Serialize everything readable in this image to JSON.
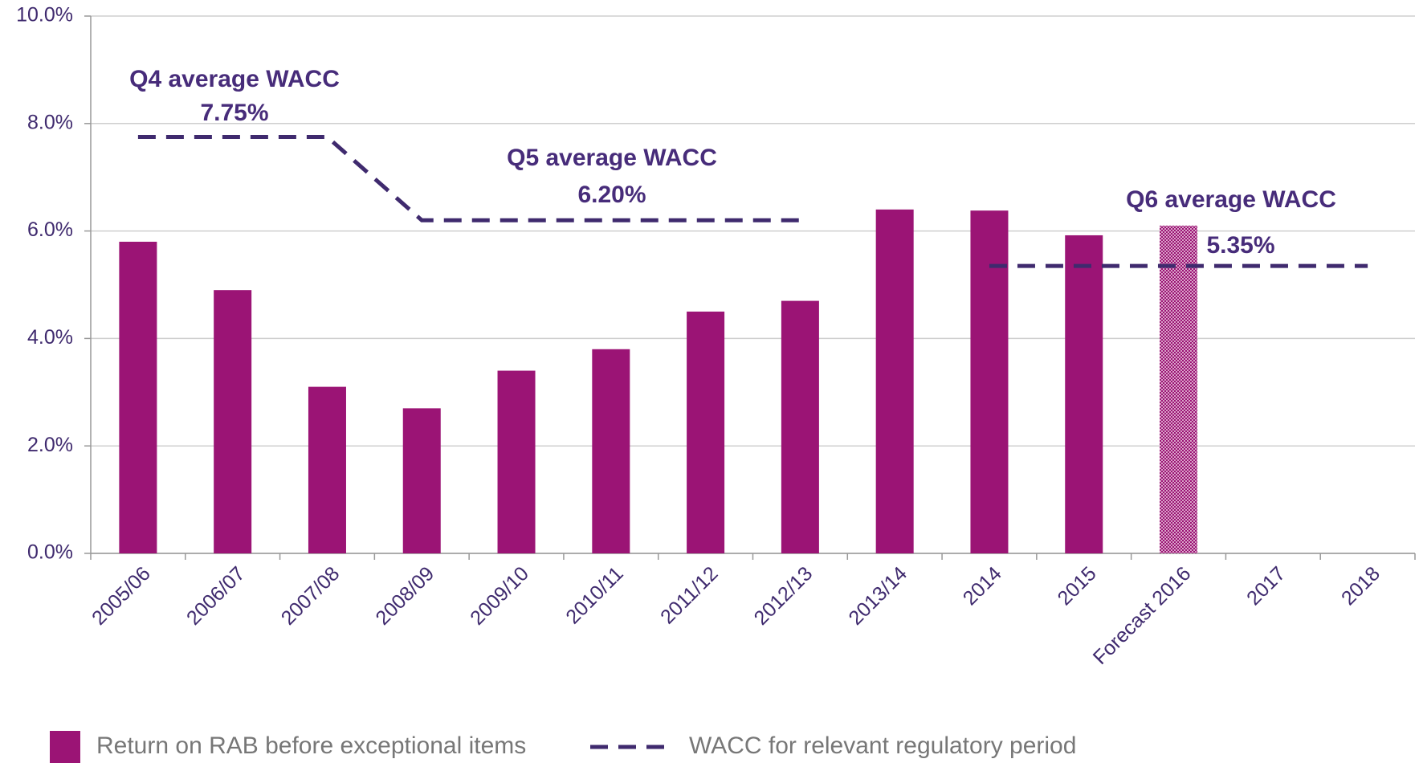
{
  "chart_data": {
    "type": "bar",
    "categories": [
      "2005/06",
      "2006/07",
      "2007/08",
      "2008/09",
      "2009/10",
      "2010/11",
      "2011/12",
      "2012/13",
      "2013/14",
      "2014",
      "2015",
      "Forecast 2016",
      "2017",
      "2018"
    ],
    "series": [
      {
        "name": "Return on RAB before exceptional items",
        "type": "bar",
        "color": "#9b1475",
        "values": [
          5.8,
          4.9,
          3.1,
          2.7,
          3.4,
          3.8,
          4.5,
          4.7,
          6.4,
          6.38,
          5.92,
          6.1,
          null,
          null
        ],
        "hatched": [
          false,
          false,
          false,
          false,
          false,
          false,
          false,
          false,
          false,
          false,
          false,
          true,
          false,
          false
        ]
      },
      {
        "name": "WACC for relevant regulatory period",
        "type": "line",
        "dashed": true,
        "color": "#3f2a6e",
        "values": [
          7.75,
          7.75,
          7.75,
          6.2,
          6.2,
          6.2,
          6.2,
          6.2,
          null,
          5.35,
          5.35,
          5.35,
          5.35,
          5.35
        ]
      }
    ],
    "ylim": [
      0,
      10
    ],
    "yticks": [
      {
        "value": 0,
        "label": "0.0%"
      },
      {
        "value": 2,
        "label": "2.0%"
      },
      {
        "value": 4,
        "label": "4.0%"
      },
      {
        "value": 6,
        "label": "6.0%"
      },
      {
        "value": 8,
        "label": "8.0%"
      },
      {
        "value": 10,
        "label": "10.0%"
      }
    ],
    "grid": true,
    "legend": "bottom",
    "annotations": [
      {
        "text": "Q4 average WACC"
      },
      {
        "text": "7.75%"
      },
      {
        "text": "Q5 average WACC"
      },
      {
        "text": "6.20%"
      },
      {
        "text": "Q6 average WACC"
      },
      {
        "text": "5.35%"
      }
    ]
  }
}
